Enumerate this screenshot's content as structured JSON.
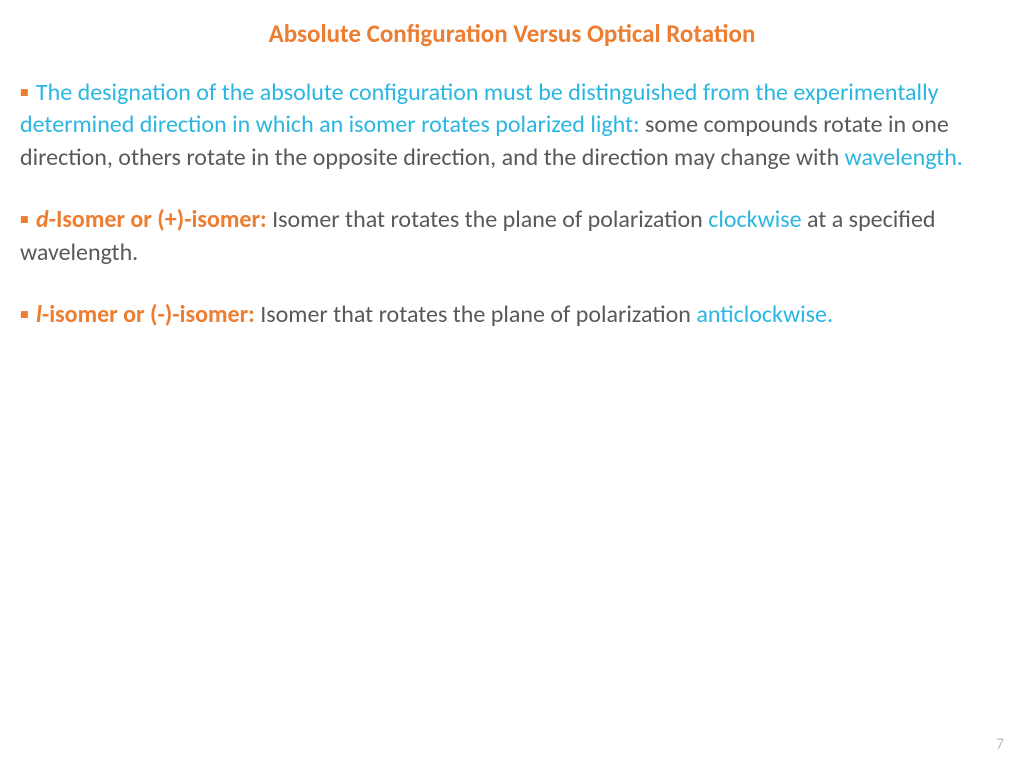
{
  "colors": {
    "orange": "#ed7d31",
    "cyan": "#2bb6e2",
    "dark": "#595959",
    "pagenum": "#bfbfbf"
  },
  "title": "Absolute Configuration Versus Optical Rotation",
  "p1": {
    "bullet": "▪",
    "seg1": " The designation of the absolute configuration must be distinguished from the experimentally determined direction in which an isomer rotates polarized light: ",
    "seg2": "some  compounds rotate in one direction, others rotate in the opposite direction, and the direction may change with ",
    "seg3": "wavelength."
  },
  "p2": {
    "bullet": "▪",
    "prefix": "d",
    "label": "-Isomer or (+)-isomer: ",
    "seg1": "Isomer that rotates the plane of polarization ",
    "highlight": "clockwise",
    "seg2": " at a specified wavelength."
  },
  "p3": {
    "bullet": "▪",
    "prefix": "l",
    "label": "-isomer or (-)-isomer: ",
    "seg1": "Isomer that rotates the plane of polarization ",
    "highlight": "anticlockwise."
  },
  "page_number": "7"
}
